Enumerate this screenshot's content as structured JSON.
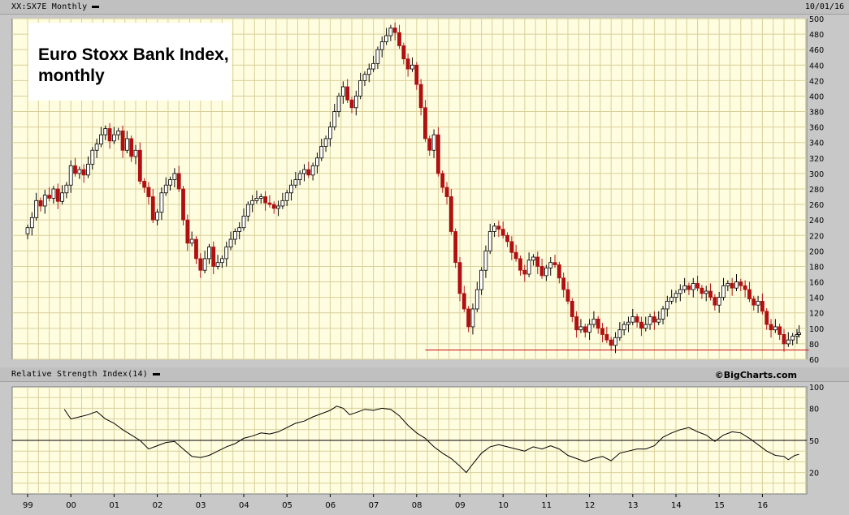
{
  "header": {
    "symbol_label": "XX:SX7E Monthly",
    "date": "10/01/16"
  },
  "rsi_header": {
    "label": "Relative Strength Index(14)",
    "credit": "©BigCharts.com"
  },
  "title": {
    "line1": "Euro Stoxx Bank Index,",
    "line2": "monthly"
  },
  "colors": {
    "up": "#ffffff",
    "down": "#b01010",
    "grid": "#d8cf9a",
    "plot_bg": "#fffde0",
    "support_line": "#cc2222",
    "rsi_line": "#000000"
  },
  "chart_data": [
    {
      "type": "candlestick",
      "title": "Euro Stoxx Bank Index, monthly",
      "interval": "Monthly",
      "x_labels": [
        "99",
        "00",
        "01",
        "02",
        "03",
        "04",
        "05",
        "06",
        "07",
        "08",
        "09",
        "10",
        "11",
        "12",
        "13",
        "14",
        "15",
        "16"
      ],
      "ylim": [
        60,
        500
      ],
      "yticks": [
        60,
        80,
        100,
        120,
        140,
        160,
        180,
        200,
        220,
        240,
        260,
        280,
        300,
        320,
        340,
        360,
        380,
        400,
        420,
        440,
        460,
        480,
        500
      ],
      "grid": true,
      "y_axis_side": "right",
      "support_line": {
        "value": 72,
        "from": 2008.2,
        "to": 2016.85
      },
      "close_points": [
        [
          1999.0,
          230
        ],
        [
          1999.1,
          243
        ],
        [
          1999.2,
          265
        ],
        [
          1999.3,
          258
        ],
        [
          1999.4,
          272
        ],
        [
          1999.5,
          268
        ],
        [
          1999.6,
          280
        ],
        [
          1999.7,
          264
        ],
        [
          1999.8,
          275
        ],
        [
          1999.9,
          285
        ],
        [
          2000.0,
          310
        ],
        [
          2000.1,
          300
        ],
        [
          2000.2,
          305
        ],
        [
          2000.3,
          298
        ],
        [
          2000.4,
          312
        ],
        [
          2000.5,
          330
        ],
        [
          2000.6,
          338
        ],
        [
          2000.7,
          350
        ],
        [
          2000.8,
          358
        ],
        [
          2000.9,
          342
        ],
        [
          2001.0,
          350
        ],
        [
          2001.1,
          355
        ],
        [
          2001.2,
          330
        ],
        [
          2001.3,
          345
        ],
        [
          2001.4,
          322
        ],
        [
          2001.5,
          330
        ],
        [
          2001.6,
          290
        ],
        [
          2001.7,
          282
        ],
        [
          2001.8,
          270
        ],
        [
          2001.9,
          240
        ],
        [
          2002.0,
          250
        ],
        [
          2002.1,
          275
        ],
        [
          2002.2,
          285
        ],
        [
          2002.3,
          292
        ],
        [
          2002.4,
          300
        ],
        [
          2002.5,
          280
        ],
        [
          2002.6,
          240
        ],
        [
          2002.7,
          210
        ],
        [
          2002.8,
          215
        ],
        [
          2002.9,
          190
        ],
        [
          2003.0,
          175
        ],
        [
          2003.1,
          190
        ],
        [
          2003.2,
          205
        ],
        [
          2003.3,
          180
        ],
        [
          2003.4,
          185
        ],
        [
          2003.5,
          190
        ],
        [
          2003.6,
          205
        ],
        [
          2003.7,
          215
        ],
        [
          2003.8,
          225
        ],
        [
          2003.9,
          230
        ],
        [
          2004.0,
          245
        ],
        [
          2004.1,
          260
        ],
        [
          2004.2,
          265
        ],
        [
          2004.3,
          268
        ],
        [
          2004.4,
          270
        ],
        [
          2004.5,
          262
        ],
        [
          2004.6,
          260
        ],
        [
          2004.7,
          255
        ],
        [
          2004.8,
          258
        ],
        [
          2004.9,
          265
        ],
        [
          2005.0,
          275
        ],
        [
          2005.1,
          285
        ],
        [
          2005.2,
          292
        ],
        [
          2005.3,
          300
        ],
        [
          2005.4,
          305
        ],
        [
          2005.5,
          298
        ],
        [
          2005.6,
          310
        ],
        [
          2005.7,
          320
        ],
        [
          2005.8,
          335
        ],
        [
          2005.9,
          345
        ],
        [
          2006.0,
          360
        ],
        [
          2006.1,
          380
        ],
        [
          2006.2,
          400
        ],
        [
          2006.3,
          412
        ],
        [
          2006.4,
          395
        ],
        [
          2006.5,
          385
        ],
        [
          2006.6,
          400
        ],
        [
          2006.7,
          420
        ],
        [
          2006.8,
          428
        ],
        [
          2006.9,
          435
        ],
        [
          2007.0,
          442
        ],
        [
          2007.1,
          460
        ],
        [
          2007.2,
          470
        ],
        [
          2007.3,
          478
        ],
        [
          2007.4,
          488
        ],
        [
          2007.5,
          482
        ],
        [
          2007.6,
          465
        ],
        [
          2007.7,
          448
        ],
        [
          2007.8,
          435
        ],
        [
          2007.9,
          440
        ],
        [
          2008.0,
          415
        ],
        [
          2008.1,
          385
        ],
        [
          2008.2,
          345
        ],
        [
          2008.3,
          330
        ],
        [
          2008.4,
          350
        ],
        [
          2008.5,
          300
        ],
        [
          2008.6,
          282
        ],
        [
          2008.7,
          270
        ],
        [
          2008.8,
          225
        ],
        [
          2008.9,
          185
        ],
        [
          2009.0,
          145
        ],
        [
          2009.1,
          125
        ],
        [
          2009.2,
          102
        ],
        [
          2009.3,
          125
        ],
        [
          2009.4,
          150
        ],
        [
          2009.5,
          175
        ],
        [
          2009.6,
          200
        ],
        [
          2009.7,
          225
        ],
        [
          2009.8,
          232
        ],
        [
          2009.9,
          228
        ],
        [
          2010.0,
          220
        ],
        [
          2010.1,
          212
        ],
        [
          2010.2,
          198
        ],
        [
          2010.3,
          190
        ],
        [
          2010.4,
          175
        ],
        [
          2010.5,
          170
        ],
        [
          2010.6,
          188
        ],
        [
          2010.7,
          192
        ],
        [
          2010.8,
          180
        ],
        [
          2010.9,
          168
        ],
        [
          2011.0,
          178
        ],
        [
          2011.1,
          185
        ],
        [
          2011.2,
          182
        ],
        [
          2011.3,
          165
        ],
        [
          2011.4,
          150
        ],
        [
          2011.5,
          135
        ],
        [
          2011.6,
          115
        ],
        [
          2011.7,
          98
        ],
        [
          2011.8,
          102
        ],
        [
          2011.9,
          95
        ],
        [
          2012.0,
          105
        ],
        [
          2012.1,
          112
        ],
        [
          2012.2,
          100
        ],
        [
          2012.3,
          92
        ],
        [
          2012.4,
          85
        ],
        [
          2012.5,
          78
        ],
        [
          2012.6,
          88
        ],
        [
          2012.7,
          98
        ],
        [
          2012.8,
          105
        ],
        [
          2012.9,
          108
        ],
        [
          2013.0,
          115
        ],
        [
          2013.1,
          108
        ],
        [
          2013.2,
          100
        ],
        [
          2013.3,
          105
        ],
        [
          2013.4,
          115
        ],
        [
          2013.5,
          108
        ],
        [
          2013.6,
          112
        ],
        [
          2013.7,
          125
        ],
        [
          2013.8,
          135
        ],
        [
          2013.9,
          140
        ],
        [
          2014.0,
          145
        ],
        [
          2014.1,
          150
        ],
        [
          2014.2,
          155
        ],
        [
          2014.3,
          150
        ],
        [
          2014.4,
          158
        ],
        [
          2014.5,
          152
        ],
        [
          2014.6,
          145
        ],
        [
          2014.7,
          148
        ],
        [
          2014.8,
          140
        ],
        [
          2014.9,
          130
        ],
        [
          2015.0,
          140
        ],
        [
          2015.1,
          155
        ],
        [
          2015.2,
          158
        ],
        [
          2015.3,
          152
        ],
        [
          2015.4,
          160
        ],
        [
          2015.5,
          155
        ],
        [
          2015.6,
          150
        ],
        [
          2015.7,
          138
        ],
        [
          2015.8,
          130
        ],
        [
          2015.9,
          135
        ],
        [
          2016.0,
          122
        ],
        [
          2016.1,
          105
        ],
        [
          2016.2,
          98
        ],
        [
          2016.3,
          102
        ],
        [
          2016.4,
          92
        ],
        [
          2016.5,
          80
        ],
        [
          2016.6,
          85
        ],
        [
          2016.7,
          90
        ],
        [
          2016.8,
          92
        ],
        [
          2016.85,
          94
        ]
      ]
    },
    {
      "type": "line",
      "title": "Relative Strength Index(14)",
      "ylim": [
        0,
        100
      ],
      "yticks": [
        20,
        50,
        80,
        100
      ],
      "reference_line": 50,
      "x_labels": [
        "99",
        "00",
        "01",
        "02",
        "03",
        "04",
        "05",
        "06",
        "07",
        "08",
        "09",
        "10",
        "11",
        "12",
        "13",
        "14",
        "15",
        "16"
      ],
      "series": [
        {
          "points": [
            [
              1999.85,
              79
            ],
            [
              2000.0,
              70
            ],
            [
              2000.2,
              72
            ],
            [
              2000.4,
              74
            ],
            [
              2000.6,
              77
            ],
            [
              2000.8,
              70
            ],
            [
              2001.0,
              66
            ],
            [
              2001.2,
              60
            ],
            [
              2001.4,
              55
            ],
            [
              2001.6,
              50
            ],
            [
              2001.8,
              42
            ],
            [
              2002.0,
              45
            ],
            [
              2002.2,
              48
            ],
            [
              2002.4,
              49
            ],
            [
              2002.6,
              42
            ],
            [
              2002.8,
              35
            ],
            [
              2003.0,
              34
            ],
            [
              2003.2,
              36
            ],
            [
              2003.4,
              40
            ],
            [
              2003.6,
              44
            ],
            [
              2003.8,
              47
            ],
            [
              2004.0,
              52
            ],
            [
              2004.2,
              54
            ],
            [
              2004.4,
              57
            ],
            [
              2004.6,
              56
            ],
            [
              2004.8,
              58
            ],
            [
              2005.0,
              62
            ],
            [
              2005.2,
              66
            ],
            [
              2005.4,
              68
            ],
            [
              2005.6,
              72
            ],
            [
              2005.8,
              75
            ],
            [
              2006.0,
              78
            ],
            [
              2006.15,
              82
            ],
            [
              2006.3,
              80
            ],
            [
              2006.45,
              74
            ],
            [
              2006.6,
              76
            ],
            [
              2006.8,
              79
            ],
            [
              2007.0,
              78
            ],
            [
              2007.2,
              80
            ],
            [
              2007.4,
              79
            ],
            [
              2007.6,
              73
            ],
            [
              2007.8,
              64
            ],
            [
              2008.0,
              57
            ],
            [
              2008.2,
              52
            ],
            [
              2008.4,
              44
            ],
            [
              2008.6,
              38
            ],
            [
              2008.8,
              33
            ],
            [
              2009.0,
              26
            ],
            [
              2009.1,
              22
            ],
            [
              2009.15,
              20
            ],
            [
              2009.3,
              28
            ],
            [
              2009.5,
              38
            ],
            [
              2009.7,
              44
            ],
            [
              2009.9,
              46
            ],
            [
              2010.1,
              44
            ],
            [
              2010.3,
              42
            ],
            [
              2010.5,
              40
            ],
            [
              2010.7,
              44
            ],
            [
              2010.9,
              42
            ],
            [
              2011.1,
              45
            ],
            [
              2011.3,
              42
            ],
            [
              2011.5,
              36
            ],
            [
              2011.7,
              33
            ],
            [
              2011.9,
              30
            ],
            [
              2012.1,
              33
            ],
            [
              2012.3,
              35
            ],
            [
              2012.5,
              31
            ],
            [
              2012.7,
              38
            ],
            [
              2012.9,
              40
            ],
            [
              2013.1,
              42
            ],
            [
              2013.3,
              42
            ],
            [
              2013.5,
              45
            ],
            [
              2013.7,
              53
            ],
            [
              2013.9,
              57
            ],
            [
              2014.1,
              60
            ],
            [
              2014.3,
              62
            ],
            [
              2014.5,
              58
            ],
            [
              2014.7,
              55
            ],
            [
              2014.9,
              49
            ],
            [
              2015.1,
              55
            ],
            [
              2015.3,
              58
            ],
            [
              2015.5,
              57
            ],
            [
              2015.7,
              52
            ],
            [
              2015.9,
              46
            ],
            [
              2016.1,
              40
            ],
            [
              2016.3,
              36
            ],
            [
              2016.5,
              35
            ],
            [
              2016.6,
              32
            ],
            [
              2016.75,
              36
            ],
            [
              2016.85,
              37
            ]
          ]
        }
      ]
    }
  ]
}
